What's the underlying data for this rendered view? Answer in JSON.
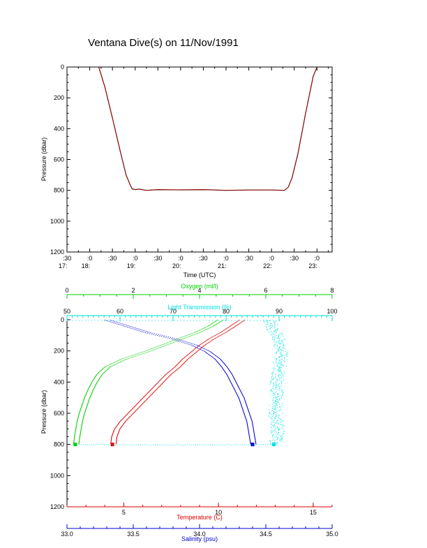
{
  "title": "Ventana Dive(s) on 11/Nov/1991",
  "colors": {
    "temperature": "#dd0000",
    "salinity": "#0000cc",
    "oxygen": "#00cc00",
    "transmission": "#00e0e0",
    "axis": "#000000"
  },
  "chart_data": [
    {
      "type": "line",
      "xlabel": "Time (UTC)",
      "ylabel": "Pressure (dbar)",
      "ylim": [
        1200,
        0
      ],
      "yticks": [
        "0",
        "200",
        "400",
        "600",
        "800",
        "1000",
        "1200"
      ],
      "xtick_labels": [
        {
          "top": ":30",
          "bottom": "17:"
        },
        {
          "top": ":0",
          "bottom": "18:"
        },
        {
          "top": ":30",
          "bottom": ""
        },
        {
          "top": ":0",
          "bottom": "19:"
        },
        {
          "top": ":30",
          "bottom": ""
        },
        {
          "top": ":0",
          "bottom": "20:"
        },
        {
          "top": ":30",
          "bottom": ""
        },
        {
          "top": ":0",
          "bottom": "21:"
        },
        {
          "top": ":30",
          "bottom": ""
        },
        {
          "top": ":0",
          "bottom": "22:"
        },
        {
          "top": ":30",
          "bottom": ""
        },
        {
          "top": ":0",
          "bottom": "23:"
        }
      ],
      "xlim": [
        "17:30",
        "23:20"
      ],
      "series": [
        {
          "x": [
            "18:12",
            "18:20",
            "18:30",
            "18:40",
            "18:48",
            "18:53",
            "18:56",
            "19:00",
            "19:05",
            "19:15",
            "19:30",
            "20:00",
            "20:30",
            "21:00",
            "21:30",
            "22:00",
            "22:17",
            "22:22",
            "22:27",
            "22:35",
            "22:45",
            "22:55",
            "23:00"
          ],
          "y": [
            0,
            130,
            330,
            540,
            700,
            760,
            790,
            795,
            792,
            800,
            795,
            797,
            795,
            800,
            798,
            798,
            800,
            780,
            720,
            560,
            300,
            60,
            0
          ]
        }
      ]
    },
    {
      "type": "scatter",
      "ylabel": "Pressure (dbar)",
      "ylim": [
        1200,
        0
      ],
      "yticks": [
        "0",
        "200",
        "400",
        "600",
        "800",
        "1000",
        "1200"
      ],
      "axes": {
        "oxygen": {
          "label": "Oxygen (ml/l)",
          "range": [
            0,
            8
          ],
          "ticks": [
            "0",
            "2",
            "4",
            "6",
            "8"
          ]
        },
        "transmission": {
          "label": "Light Transmission (%)",
          "range": [
            50,
            100
          ],
          "ticks": [
            "50",
            "60",
            "70",
            "80",
            "90",
            "100"
          ]
        },
        "temperature": {
          "label": "Temperature (C)",
          "range": [
            2,
            16
          ],
          "ticks": [
            "5",
            "10",
            "15"
          ]
        },
        "salinity": {
          "label": "Salinity (psu)",
          "range": [
            33.0,
            35.0
          ],
          "ticks": [
            "33.0",
            "33.5",
            "34.0",
            "34.5",
            "35.0"
          ]
        }
      },
      "series": [
        {
          "axis": "oxygen",
          "pressure": [
            0,
            40,
            80,
            120,
            160,
            200,
            250,
            300,
            350,
            400,
            450,
            500,
            550,
            600,
            650,
            700,
            750,
            800
          ],
          "values": [
            4.6,
            4.3,
            3.9,
            3.4,
            2.9,
            2.4,
            1.7,
            1.2,
            0.95,
            0.8,
            0.68,
            0.58,
            0.5,
            0.42,
            0.36,
            0.32,
            0.28,
            0.25
          ]
        },
        {
          "axis": "transmission",
          "pressure": [
            0,
            50,
            100,
            150,
            200,
            250,
            300,
            350,
            400,
            450,
            500,
            550,
            600,
            650,
            700,
            750,
            800
          ],
          "values": [
            88,
            88.5,
            89.5,
            90,
            90.3,
            90.1,
            90,
            89.7,
            89.4,
            89.5,
            89.3,
            89.2,
            89.1,
            89.4,
            89.6,
            89.5,
            89
          ]
        },
        {
          "axis": "temperature",
          "pressure": [
            0,
            40,
            80,
            120,
            160,
            200,
            250,
            300,
            350,
            400,
            450,
            500,
            550,
            600,
            650,
            700,
            750,
            800
          ],
          "values": [
            11.2,
            10.7,
            10.2,
            9.6,
            9.1,
            8.7,
            8.2,
            7.8,
            7.3,
            6.9,
            6.5,
            6.1,
            5.7,
            5.3,
            4.9,
            4.6,
            4.45,
            4.4
          ]
        },
        {
          "axis": "salinity",
          "pressure": [
            0,
            40,
            80,
            120,
            160,
            200,
            250,
            300,
            350,
            400,
            450,
            500,
            550,
            600,
            650,
            700,
            750,
            800
          ],
          "values": [
            33.3,
            33.45,
            33.6,
            33.8,
            33.95,
            34.05,
            34.13,
            34.18,
            34.22,
            34.25,
            34.28,
            34.31,
            34.33,
            34.35,
            34.37,
            34.38,
            34.39,
            34.4
          ]
        }
      ]
    }
  ]
}
